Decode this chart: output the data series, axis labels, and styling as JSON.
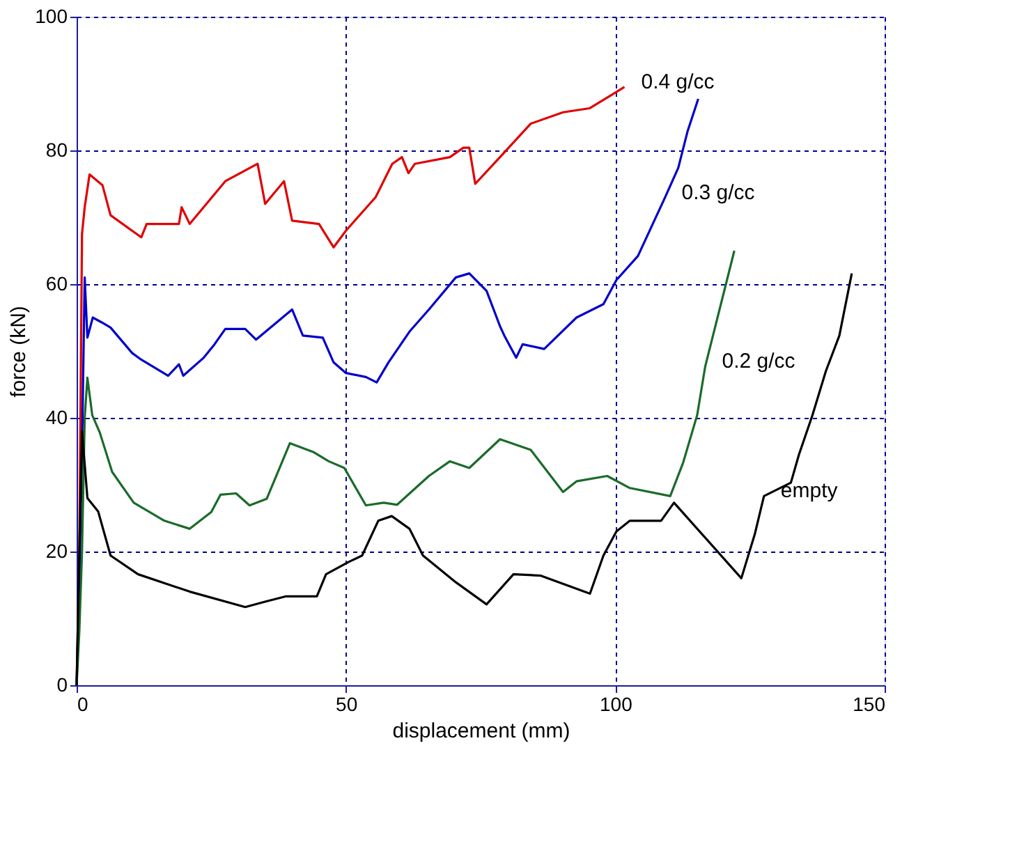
{
  "chart_data": {
    "type": "line",
    "xlabel": "displacement (mm)",
    "ylabel": "force (kN)",
    "xlim": [
      0,
      150
    ],
    "ylim": [
      0,
      100
    ],
    "xticks": [
      0,
      50,
      100,
      150
    ],
    "yticks": [
      0,
      20,
      40,
      60,
      80,
      100
    ],
    "grid": true,
    "line_style": "solid",
    "marker": "none",
    "series": [
      {
        "color": "#e00000",
        "x": [
          0,
          0.5,
          1,
          1.5,
          2.4,
          4.8,
          6.3,
          12,
          13,
          19,
          19.5,
          21,
          27.6,
          33.6,
          35,
          38.5,
          40,
          45,
          47.7,
          50,
          55.5,
          58.6,
          60.4,
          61.6,
          62.8,
          69.3,
          71.8,
          72.9,
          74,
          78.6,
          84.3,
          90.3,
          95.2,
          99.3,
          101.7
        ],
        "values": [
          0,
          20,
          67.5,
          71.5,
          76.4,
          74.8,
          70.3,
          67,
          69,
          69,
          71.5,
          69,
          75.4,
          78,
          72,
          75.4,
          69.5,
          69,
          65.5,
          68,
          73,
          78,
          79,
          76.6,
          78,
          79,
          80.4,
          80.4,
          75,
          79,
          84,
          85.7,
          86.3,
          88.3,
          89.5
        ]
      },
      {
        "color": "#0000cc",
        "x": [
          0,
          0.5,
          1,
          1.5,
          2,
          3,
          4.6,
          6.3,
          10.3,
          12,
          17,
          19,
          19.8,
          23.6,
          25.6,
          27.6,
          31.3,
          33.3,
          40,
          42,
          45.7,
          47.7,
          50,
          53.7,
          55.7,
          57.9,
          61.9,
          65.4,
          70.4,
          72.9,
          76.1,
          78.6,
          79.4,
          81.6,
          82.8,
          86.8,
          92.8,
          97.8,
          100.2,
          104.2,
          109.2,
          111.7,
          113.4,
          115.4
        ],
        "values": [
          0,
          15,
          35,
          61,
          52,
          55,
          54.3,
          53.5,
          49.7,
          48.7,
          46.3,
          48,
          46.3,
          49,
          51,
          53.3,
          53.3,
          51.7,
          56.2,
          52.3,
          52,
          48.3,
          46.7,
          46.1,
          45.3,
          48.3,
          53,
          56.2,
          61,
          61.6,
          59,
          53.7,
          52.3,
          49,
          51,
          50.3,
          55,
          57,
          60.6,
          64.2,
          72.9,
          77.4,
          82.8,
          87.7
        ]
      },
      {
        "color": "#1a6b2a",
        "x": [
          0,
          0.5,
          1,
          1.5,
          2,
          2.9,
          4.3,
          6.6,
          10.6,
          16.3,
          21,
          25,
          26.7,
          29.6,
          32.1,
          35.3,
          39.6,
          43.9,
          46.8,
          49.7,
          53.7,
          57,
          59.5,
          65.4,
          69.3,
          72.9,
          78.6,
          84.3,
          90.3,
          92.8,
          98.5,
          102.7,
          110.2,
          112.6,
          115.2,
          116.7,
          122.1
        ],
        "values": [
          0,
          8,
          20,
          40,
          46,
          40.4,
          37.8,
          31.9,
          27.3,
          24.6,
          23.4,
          25.9,
          28.5,
          28.7,
          26.9,
          27.9,
          36.2,
          34.9,
          33.5,
          32.5,
          26.9,
          27.3,
          27,
          31.3,
          33.5,
          32.5,
          36.8,
          35.2,
          28.9,
          30.5,
          31.3,
          29.5,
          28.3,
          33.3,
          40.4,
          47.7,
          65
        ]
      },
      {
        "color": "#000000",
        "x": [
          0,
          0.5,
          1,
          2,
          4,
          6.3,
          11.4,
          21,
          31.3,
          35,
          38.9,
          44.6,
          46.3,
          50.4,
          53,
          56,
          58.5,
          61.8,
          64.3,
          70.4,
          76.1,
          81.1,
          86.1,
          95.3,
          97.8,
          100.2,
          102.7,
          108.5,
          110.9,
          123.4,
          125.9,
          127.6,
          132.6,
          134.1,
          136.6,
          139.1,
          141.6,
          143.9
        ],
        "values": [
          0,
          20,
          38,
          28,
          26,
          19.4,
          16.6,
          14,
          11.7,
          12.5,
          13.3,
          13.3,
          16.6,
          18.4,
          19.4,
          24.6,
          25.3,
          23.4,
          19.4,
          15.4,
          12.1,
          16.6,
          16.4,
          13.7,
          19.4,
          23,
          24.6,
          24.6,
          27.3,
          16,
          22.6,
          28.3,
          30.3,
          34.5,
          40.4,
          47,
          52.3,
          61.6
        ]
      }
    ],
    "annotations": [
      {
        "text": "0.4 g/cc",
        "x": 101.7,
        "y": 89.5
      },
      {
        "text": "0.3 g/cc",
        "x": 109.2,
        "y": 72.9
      },
      {
        "text": "0.2 g/cc",
        "x": 116.7,
        "y": 47.7
      },
      {
        "text": "empty",
        "x": 127.6,
        "y": 28.3
      }
    ]
  }
}
